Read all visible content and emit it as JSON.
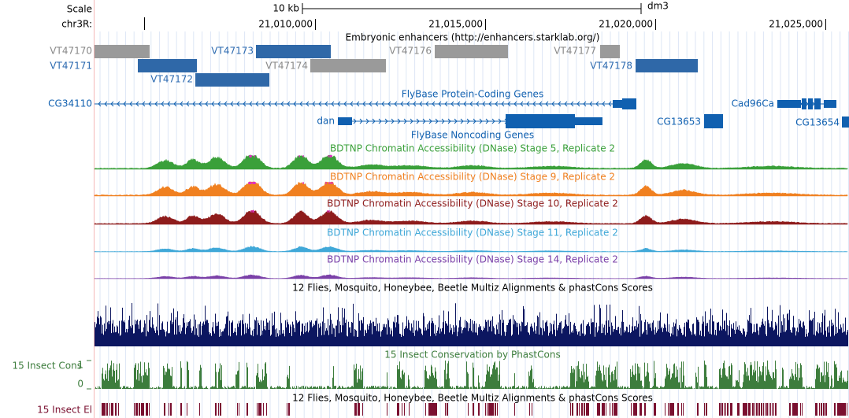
{
  "scale": {
    "label": "Scale",
    "length": "10 kb",
    "assembly": "dm3"
  },
  "ruler": {
    "chrom": "chr3R:",
    "positions": [
      "21,010,000",
      "21,015,000",
      "21,020,000",
      "21,025,000"
    ]
  },
  "enhancers": {
    "title": "Embryonic enhancers (http://enhancers.starklab.org/)",
    "items": [
      "VT47170",
      "VT47171",
      "VT47172",
      "VT47173",
      "VT47174",
      "VT47176",
      "VT47177",
      "VT47178"
    ]
  },
  "protein_genes": {
    "title": "FlyBase Protein-Coding Genes",
    "genes": [
      "CG34110",
      "dan",
      "CG13653",
      "Cad96Ca",
      "CG13654"
    ]
  },
  "noncoding_genes": {
    "title": "FlyBase Noncoding Genes"
  },
  "dnase_tracks": [
    {
      "title": "BDTNP Chromatin Accessibility (DNase) Stage 5, Replicate 2",
      "color": "#3aa03a"
    },
    {
      "title": "BDTNP Chromatin Accessibility (DNase) Stage 9, Replicate 2",
      "color": "#f08020"
    },
    {
      "title": "BDTNP Chromatin Accessibility (DNase) Stage 10, Replicate 2",
      "color": "#8e1c1c"
    },
    {
      "title": "BDTNP Chromatin Accessibility (DNase) Stage 11, Replicate 2",
      "color": "#40a8d8"
    },
    {
      "title": "BDTNP Chromatin Accessibility (DNase) Stage 14, Replicate 2",
      "color": "#7a40a8"
    }
  ],
  "multiz": {
    "title": "12 Flies, Mosquito, Honeybee, Beetle Multiz Alignments & phastCons Scores"
  },
  "conservation": {
    "title": "15 Insect Conservation by PhastCons",
    "label": "15 Insect Cons",
    "max": "1",
    "min": "0"
  },
  "elements": {
    "title": "12 Flies, Mosquito, Honeybee, Beetle Multiz Alignments & phastCons Scores",
    "label": "15 Insect El"
  }
}
